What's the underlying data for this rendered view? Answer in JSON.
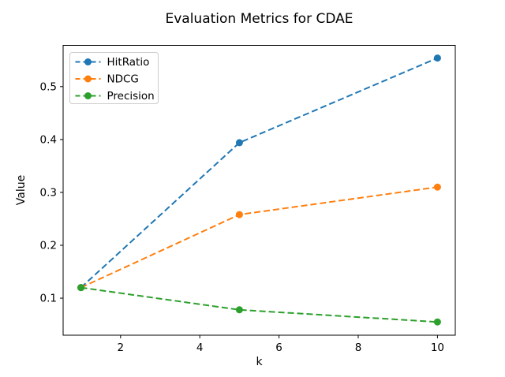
{
  "figure": {
    "background": "#ffffff",
    "text_color": "#000000",
    "axis_color": "#000000"
  },
  "chart_data": {
    "type": "line",
    "title": "Evaluation Metrics for CDAE",
    "xlabel": "k",
    "ylabel": "Value",
    "x": [
      1,
      5,
      10
    ],
    "series": [
      {
        "name": "HitRatio",
        "color": "#1f77b4",
        "values": [
          0.12,
          0.394,
          0.554
        ]
      },
      {
        "name": "NDCG",
        "color": "#ff7f0e",
        "values": [
          0.12,
          0.258,
          0.31
        ]
      },
      {
        "name": "Precision",
        "color": "#2ca02c",
        "values": [
          0.12,
          0.078,
          0.055
        ]
      }
    ],
    "xticks": [
      2,
      4,
      6,
      8,
      10
    ],
    "yticks": [
      0.1,
      0.2,
      0.3,
      0.4,
      0.5
    ],
    "xlim": [
      0.55,
      10.45
    ],
    "ylim": [
      0.03,
      0.578
    ],
    "line_style": "dashed",
    "marker": "circle",
    "grid": false,
    "legend": {
      "position": "upper-left",
      "border_color": "#cccccc",
      "background": "rgba(255,255,255,0.8)"
    }
  }
}
